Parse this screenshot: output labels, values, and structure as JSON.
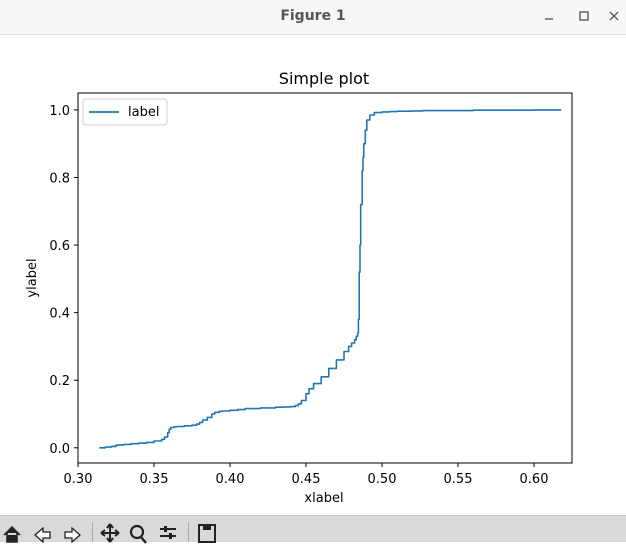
{
  "window": {
    "title": "Figure 1",
    "minimize_icon": "minimize-icon",
    "maximize_icon": "maximize-icon",
    "close_icon": "close-icon"
  },
  "chart_data": {
    "type": "line",
    "title": "Simple plot",
    "xlabel": "xlabel",
    "ylabel": "ylabel",
    "xlim": [
      0.3,
      0.625
    ],
    "ylim": [
      -0.045,
      1.05
    ],
    "xticks": [
      0.3,
      0.35,
      0.4,
      0.45,
      0.5,
      0.55,
      0.6
    ],
    "xtick_labels": [
      "0.30",
      "0.35",
      "0.40",
      "0.45",
      "0.50",
      "0.55",
      "0.60"
    ],
    "yticks": [
      0.0,
      0.2,
      0.4,
      0.6,
      0.8,
      1.0
    ],
    "ytick_labels": [
      "0.0",
      "0.2",
      "0.4",
      "0.6",
      "0.8",
      "1.0"
    ],
    "grid": false,
    "legend_position": "top-left",
    "series": [
      {
        "name": "label",
        "color": "#1f77b4",
        "x": [
          0.314,
          0.318,
          0.322,
          0.325,
          0.33,
          0.335,
          0.34,
          0.345,
          0.35,
          0.355,
          0.357,
          0.359,
          0.36,
          0.361,
          0.363,
          0.365,
          0.37,
          0.375,
          0.378,
          0.38,
          0.382,
          0.385,
          0.388,
          0.39,
          0.393,
          0.395,
          0.4,
          0.405,
          0.41,
          0.42,
          0.43,
          0.435,
          0.44,
          0.443,
          0.445,
          0.447,
          0.45,
          0.452,
          0.455,
          0.46,
          0.465,
          0.47,
          0.475,
          0.478,
          0.48,
          0.482,
          0.483,
          0.484,
          0.4845,
          0.485,
          0.4855,
          0.486,
          0.487,
          0.4875,
          0.488,
          0.489,
          0.49,
          0.492,
          0.495,
          0.5,
          0.505,
          0.51,
          0.52,
          0.527,
          0.54,
          0.56,
          0.58,
          0.6,
          0.618
        ],
        "y": [
          0.0,
          0.002,
          0.004,
          0.008,
          0.01,
          0.012,
          0.014,
          0.016,
          0.02,
          0.025,
          0.032,
          0.045,
          0.055,
          0.06,
          0.062,
          0.063,
          0.065,
          0.067,
          0.07,
          0.075,
          0.082,
          0.09,
          0.1,
          0.105,
          0.108,
          0.109,
          0.111,
          0.113,
          0.116,
          0.118,
          0.12,
          0.121,
          0.122,
          0.125,
          0.13,
          0.14,
          0.16,
          0.175,
          0.19,
          0.21,
          0.235,
          0.26,
          0.285,
          0.3,
          0.31,
          0.32,
          0.33,
          0.34,
          0.38,
          0.52,
          0.6,
          0.72,
          0.82,
          0.86,
          0.9,
          0.94,
          0.97,
          0.985,
          0.992,
          0.994,
          0.995,
          0.996,
          0.997,
          0.998,
          0.998,
          0.999,
          0.999,
          1.0,
          1.0
        ]
      }
    ]
  },
  "toolbar": {
    "home_icon": "home-icon",
    "back_icon": "back-arrow-icon",
    "forward_icon": "forward-arrow-icon",
    "pan_icon": "pan-icon",
    "zoom_icon": "zoom-icon",
    "configure_icon": "configure-subplots-icon",
    "save_icon": "save-icon"
  }
}
